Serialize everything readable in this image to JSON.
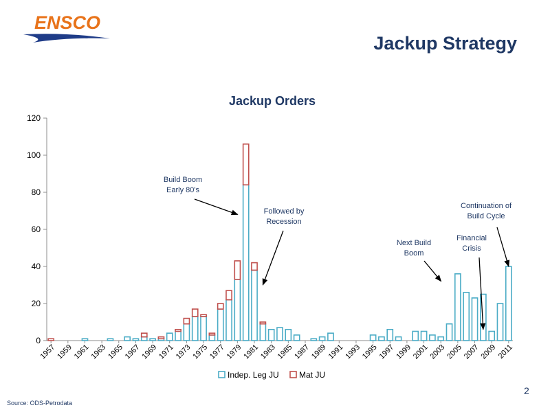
{
  "slide": {
    "logo_text": "ENSCO",
    "title": "Jackup Strategy",
    "page_number": "2",
    "source": "Source: ODS-Petrodata"
  },
  "colors": {
    "title": "#1f3864",
    "logo_orange": "#e8731a",
    "logo_blue": "#1f3c88",
    "series_indep": "#4bacc6",
    "series_mat": "#c0504d"
  },
  "chart_data": {
    "type": "bar",
    "stacked": true,
    "title": "Jackup Orders",
    "xlabel": "",
    "ylabel": "",
    "ylim": [
      0,
      120
    ],
    "yticks": [
      0,
      20,
      40,
      60,
      80,
      100,
      120
    ],
    "grid": false,
    "legend": "bottom",
    "x": [
      1957,
      1958,
      1959,
      1960,
      1961,
      1962,
      1963,
      1964,
      1965,
      1966,
      1967,
      1968,
      1969,
      1970,
      1971,
      1972,
      1973,
      1974,
      1975,
      1976,
      1977,
      1978,
      1979,
      1980,
      1981,
      1982,
      1983,
      1984,
      1985,
      1986,
      1987,
      1988,
      1989,
      1990,
      1991,
      1992,
      1993,
      1994,
      1995,
      1996,
      1997,
      1998,
      1999,
      2000,
      2001,
      2002,
      2003,
      2004,
      2005,
      2006,
      2007,
      2008,
      2009,
      2010,
      2011
    ],
    "xtick_labels": [
      "1957",
      "1959",
      "1961",
      "1963",
      "1965",
      "1967",
      "1969",
      "1971",
      "1973",
      "1975",
      "1977",
      "1979",
      "1981",
      "1983",
      "1985",
      "1987",
      "1989",
      "1991",
      "1993",
      "1995",
      "1997",
      "1999",
      "2001",
      "2003",
      "2005",
      "2007",
      "2009",
      "2011"
    ],
    "series": [
      {
        "name": "Indep. Leg JU",
        "color": "#4bacc6",
        "values": [
          0,
          0,
          0,
          0,
          1,
          0,
          0,
          1,
          0,
          2,
          1,
          2,
          1,
          1,
          4,
          5,
          9,
          13,
          13,
          3,
          17,
          22,
          33,
          84,
          38,
          9,
          6,
          7,
          6,
          3,
          0,
          1,
          2,
          4,
          0,
          0,
          0,
          0,
          3,
          2,
          6,
          2,
          0,
          5,
          5,
          3,
          2,
          9,
          36,
          26,
          23,
          25,
          5,
          20,
          40
        ]
      },
      {
        "name": "Mat JU",
        "color": "#c0504d",
        "values": [
          1,
          0,
          0,
          0,
          0,
          0,
          0,
          0,
          0,
          0,
          0,
          2,
          0,
          1,
          0,
          1,
          3,
          4,
          1,
          1,
          3,
          5,
          10,
          22,
          4,
          1,
          0,
          0,
          0,
          0,
          0,
          0,
          0,
          0,
          0,
          0,
          0,
          0,
          0,
          0,
          0,
          0,
          0,
          0,
          0,
          0,
          0,
          0,
          0,
          0,
          0,
          0,
          0,
          0,
          0
        ]
      }
    ],
    "annotations": [
      {
        "lines": [
          "Build Boom",
          "Early 80's"
        ],
        "year": 1980,
        "value": 68
      },
      {
        "lines": [
          "Followed by",
          "Recession"
        ],
        "year": 1982,
        "value": 30
      },
      {
        "lines": [
          "Next Build",
          "Boom"
        ],
        "year": 2004,
        "value": 32
      },
      {
        "lines": [
          "Financial",
          "Crisis"
        ],
        "year": 2008,
        "value": 6
      },
      {
        "lines": [
          "Continuation of",
          "Build Cycle"
        ],
        "year": 2011,
        "value": 40
      }
    ]
  }
}
